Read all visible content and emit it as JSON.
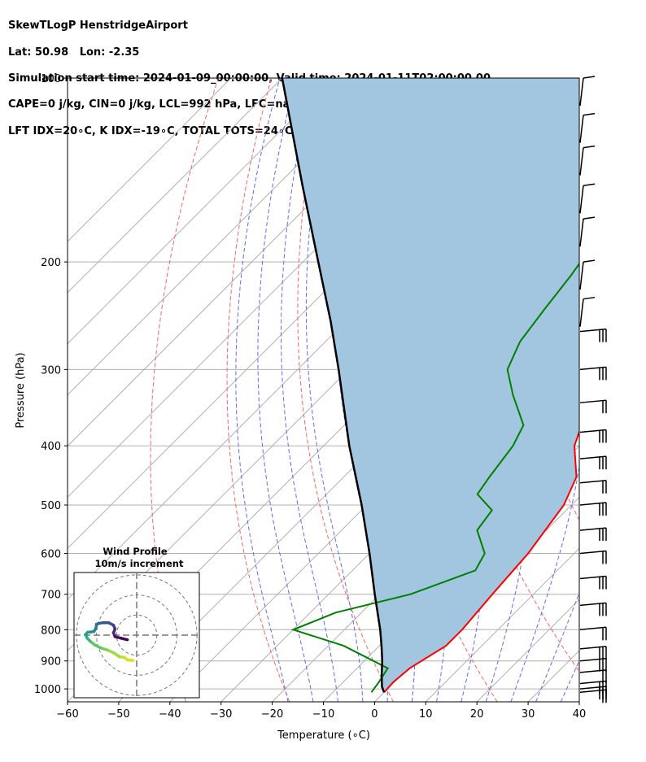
{
  "header": {
    "line1": "SkewTLogP HenstridgeAirport",
    "line2": "Lat: 50.98   Lon: -2.35",
    "line3": "Simulation start time: 2024-01-09_00:00:00, Valid time: 2024-01-11T02:00:00.00",
    "line4": "CAPE=0 j/kg, CIN=0 j/kg, LCL=992 hPa, LFC=nan hPa, EQ=nan hPa",
    "line5": "LFT IDX=20∘C, K IDX=-19∘C, TOTAL TOTS=24∘C, SHWTR_IDX=15∘C"
  },
  "chart_data": {
    "type": "line",
    "subtype": "skew-t log-p",
    "xlabel": "Temperature (∘C)",
    "ylabel": "Pressure (hPa)",
    "xlim": [
      -60,
      40
    ],
    "ylim": [
      1050,
      100
    ],
    "y_scale": "log",
    "x_ticks": [
      "−60",
      "−50",
      "−40",
      "−30",
      "−20",
      "−10",
      "0",
      "10",
      "20",
      "30",
      "40"
    ],
    "y_ticks": [
      "100",
      "200",
      "300",
      "400",
      "500",
      "600",
      "700",
      "800",
      "900",
      "1000"
    ],
    "grid": true,
    "series": [
      {
        "role": "temperature",
        "color": "#ff0000",
        "points": [
          [
            1013,
            0.0
          ],
          [
            975,
            -0.2
          ],
          [
            925,
            0.3
          ],
          [
            850,
            3.0
          ],
          [
            800,
            3.0
          ],
          [
            700,
            2.0
          ],
          [
            600,
            1.0
          ],
          [
            500,
            -1.5
          ],
          [
            450,
            -4.5
          ],
          [
            400,
            -11.0
          ],
          [
            350,
            -15.5
          ],
          [
            335,
            -16.0
          ],
          [
            300,
            -15.5
          ],
          [
            260,
            -14.0
          ],
          [
            220,
            -12.5
          ],
          [
            190,
            -11.0
          ],
          [
            170,
            -10.5
          ],
          [
            150,
            -10.5
          ],
          [
            130,
            -12.5
          ],
          [
            115,
            -13.0
          ],
          [
            100,
            -15.0
          ]
        ]
      },
      {
        "role": "dewpoint",
        "color": "#008000",
        "points": [
          [
            1013,
            -2.5
          ],
          [
            975,
            -3.0
          ],
          [
            925,
            -4.0
          ],
          [
            850,
            -17.0
          ],
          [
            800,
            -30.0
          ],
          [
            750,
            -25.0
          ],
          [
            700,
            -14.0
          ],
          [
            640,
            -6.0
          ],
          [
            600,
            -7.5
          ],
          [
            550,
            -13.5
          ],
          [
            510,
            -14.5
          ],
          [
            480,
            -20.5
          ],
          [
            450,
            -21.5
          ],
          [
            400,
            -23.0
          ],
          [
            370,
            -25.0
          ],
          [
            330,
            -33.0
          ],
          [
            300,
            -39.0
          ],
          [
            270,
            -42.0
          ],
          [
            240,
            -43.5
          ],
          [
            210,
            -45.0
          ],
          [
            190,
            -46.5
          ],
          [
            170,
            -48.5
          ],
          [
            150,
            -47.0
          ],
          [
            100,
            -42.0
          ]
        ]
      },
      {
        "role": "parcel",
        "color": "#000000",
        "points": [
          [
            1013,
            0.0
          ],
          [
            992,
            -1.5
          ],
          [
            950,
            -3.8
          ],
          [
            900,
            -6.5
          ],
          [
            850,
            -9.6
          ],
          [
            800,
            -13.0
          ],
          [
            700,
            -21.0
          ],
          [
            600,
            -30.0
          ],
          [
            500,
            -41.0
          ],
          [
            400,
            -55.0
          ],
          [
            300,
            -72.0
          ],
          [
            250,
            -83.0
          ],
          [
            200,
            -97.0
          ],
          [
            150,
            -115.0
          ],
          [
            100,
            -140.0
          ]
        ]
      }
    ],
    "wind_barbs_pressure": [
      100,
      115,
      130,
      150,
      170,
      200,
      230,
      260,
      300,
      340,
      380,
      420,
      460,
      500,
      550,
      600,
      660,
      730,
      800,
      860,
      900,
      940,
      980,
      1000,
      1013
    ],
    "inset": {
      "title_line1": "Wind Profile",
      "title_line2": "10m/s increment",
      "hodograph": [
        [
          -1.2,
          -8.2
        ],
        [
          -3.0,
          -8.0
        ],
        [
          -4.0,
          -7.2
        ],
        [
          -5.5,
          -7.0
        ],
        [
          -7.5,
          -5.7
        ],
        [
          -9.5,
          -4.8
        ],
        [
          -11.5,
          -4.2
        ],
        [
          -13.5,
          -3.2
        ],
        [
          -15.0,
          -2.0
        ],
        [
          -16.0,
          -1.0
        ],
        [
          -16.5,
          0.2
        ],
        [
          -15.8,
          1.0
        ],
        [
          -14.8,
          1.0
        ],
        [
          -13.8,
          1.2
        ],
        [
          -13.2,
          2.2
        ],
        [
          -13.0,
          3.5
        ],
        [
          -12.2,
          3.8
        ],
        [
          -11.0,
          4.0
        ],
        [
          -9.0,
          4.0
        ],
        [
          -7.5,
          3.2
        ],
        [
          -7.0,
          2.0
        ],
        [
          -7.5,
          0.8
        ],
        [
          -7.0,
          -0.5
        ],
        [
          -5.0,
          -1.0
        ],
        [
          -3.0,
          -1.5
        ]
      ]
    }
  }
}
